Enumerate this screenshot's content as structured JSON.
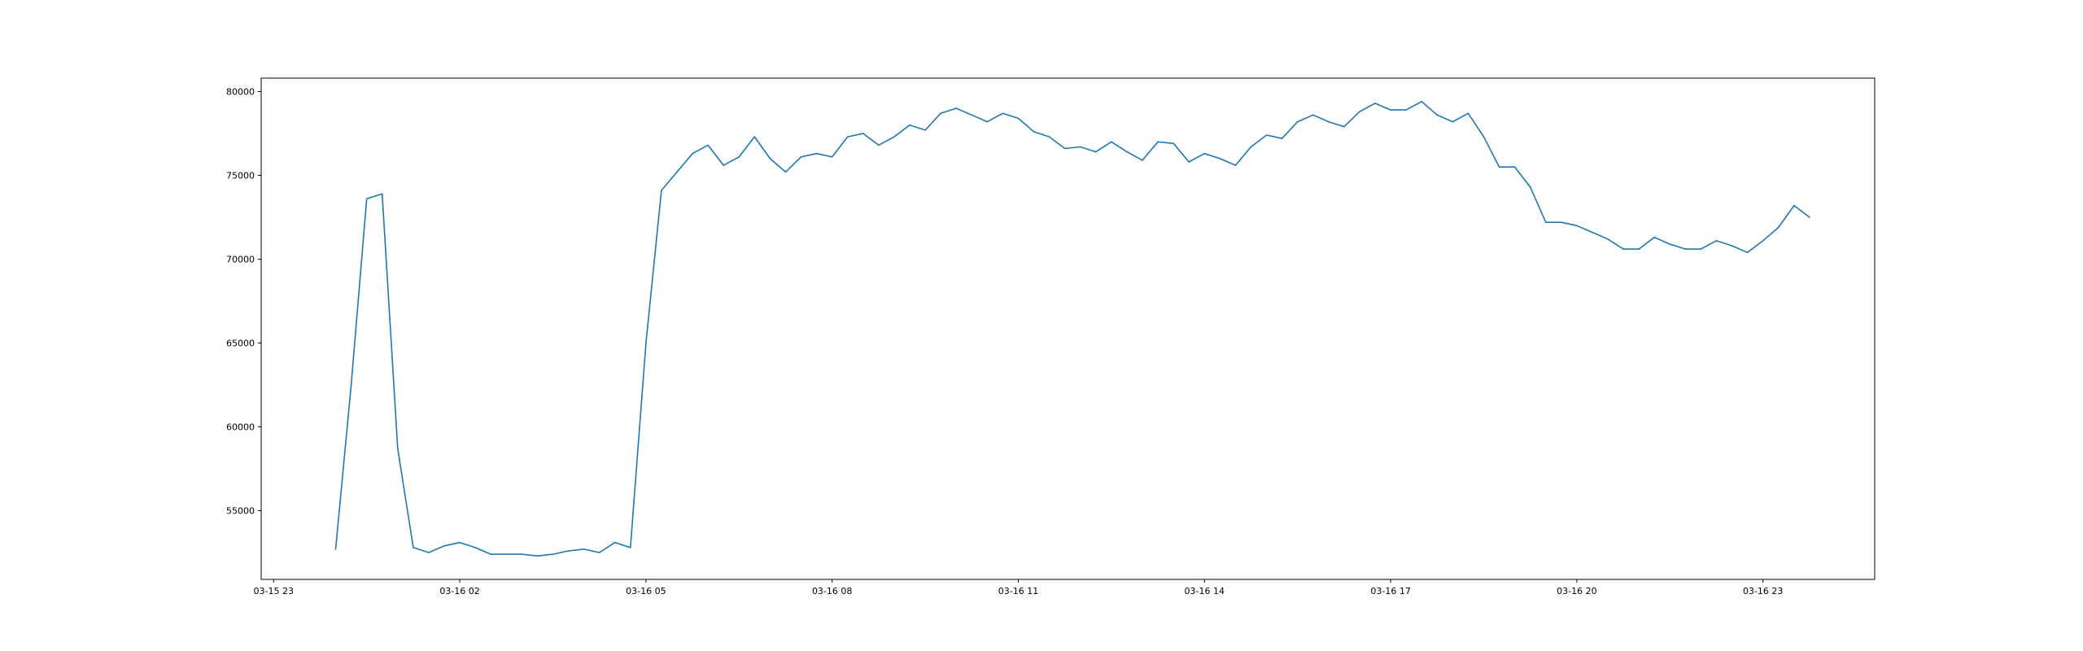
{
  "chart_data": {
    "type": "line",
    "title": "",
    "xlabel": "",
    "ylabel": "",
    "x_tick_labels": [
      "03-15 23",
      "03-16 02",
      "03-16 05",
      "03-16 08",
      "03-16 11",
      "03-16 14",
      "03-16 17",
      "03-16 20",
      "03-16 23"
    ],
    "y_ticks": [
      55000,
      60000,
      65000,
      70000,
      75000,
      80000
    ],
    "y_tick_labels": [
      "55000",
      "60000",
      "65000",
      "70000",
      "75000",
      "80000"
    ],
    "x_tick_hours": [
      23,
      26,
      29,
      32,
      35,
      38,
      41,
      44,
      47
    ],
    "xlim_hours": [
      22.8,
      48.8
    ],
    "ylim": [
      50900,
      80800
    ],
    "grid": false,
    "line_color": "#1f77b4",
    "series": [
      {
        "x_hours": [
          24.0,
          24.25,
          24.5,
          24.75,
          25.0,
          25.25,
          25.5,
          25.75,
          26.0,
          26.25,
          26.5,
          26.75,
          27.0,
          27.25,
          27.5,
          27.75,
          28.0,
          28.25,
          28.5,
          28.75,
          29.0,
          29.25,
          29.5,
          29.75,
          30.0,
          30.25,
          30.5,
          30.75,
          31.0,
          31.25,
          31.5,
          31.75,
          32.0,
          32.25,
          32.5,
          32.75,
          33.0,
          33.25,
          33.5,
          33.75,
          34.0,
          34.25,
          34.5,
          34.75,
          35.0,
          35.25,
          35.5,
          35.75,
          36.0,
          36.25,
          36.5,
          36.75,
          37.0,
          37.25,
          37.5,
          37.75,
          38.0,
          38.25,
          38.5,
          38.75,
          39.0,
          39.25,
          39.5,
          39.75,
          40.0,
          40.25,
          40.5,
          40.75,
          41.0,
          41.25,
          41.5,
          41.75,
          42.0,
          42.25,
          42.5,
          42.75,
          43.0,
          43.25,
          43.5,
          43.75,
          44.0,
          44.25,
          44.5,
          44.75,
          45.0,
          45.25,
          45.5,
          45.75,
          46.0,
          46.25,
          46.5,
          46.75,
          47.0,
          47.25,
          47.5,
          47.75
        ],
        "values": [
          52700,
          62500,
          73600,
          73900,
          58700,
          52800,
          52500,
          52900,
          53100,
          52800,
          52400,
          52400,
          52400,
          52300,
          52400,
          52600,
          52700,
          52500,
          53100,
          52800,
          65000,
          74100,
          75200,
          76300,
          76800,
          75600,
          76100,
          77300,
          76000,
          75200,
          76100,
          76300,
          76100,
          77300,
          77500,
          76800,
          77300,
          78000,
          77700,
          78700,
          79000,
          78600,
          78200,
          78700,
          78400,
          77600,
          77300,
          76600,
          76700,
          76400,
          77000,
          76400,
          75900,
          77000,
          76900,
          75800,
          76300,
          76000,
          75600,
          76700,
          77400,
          77200,
          78200,
          78600,
          78200,
          77900,
          78800,
          79300,
          78900,
          78900,
          79400,
          78600,
          78200,
          78700,
          77300,
          75500,
          75500,
          74300,
          72200,
          72200,
          72000,
          71600,
          71200,
          70600,
          70600,
          71300,
          70900,
          70600,
          70600,
          71100,
          70800,
          70400,
          71100,
          71900,
          73200,
          72500
        ]
      }
    ]
  }
}
